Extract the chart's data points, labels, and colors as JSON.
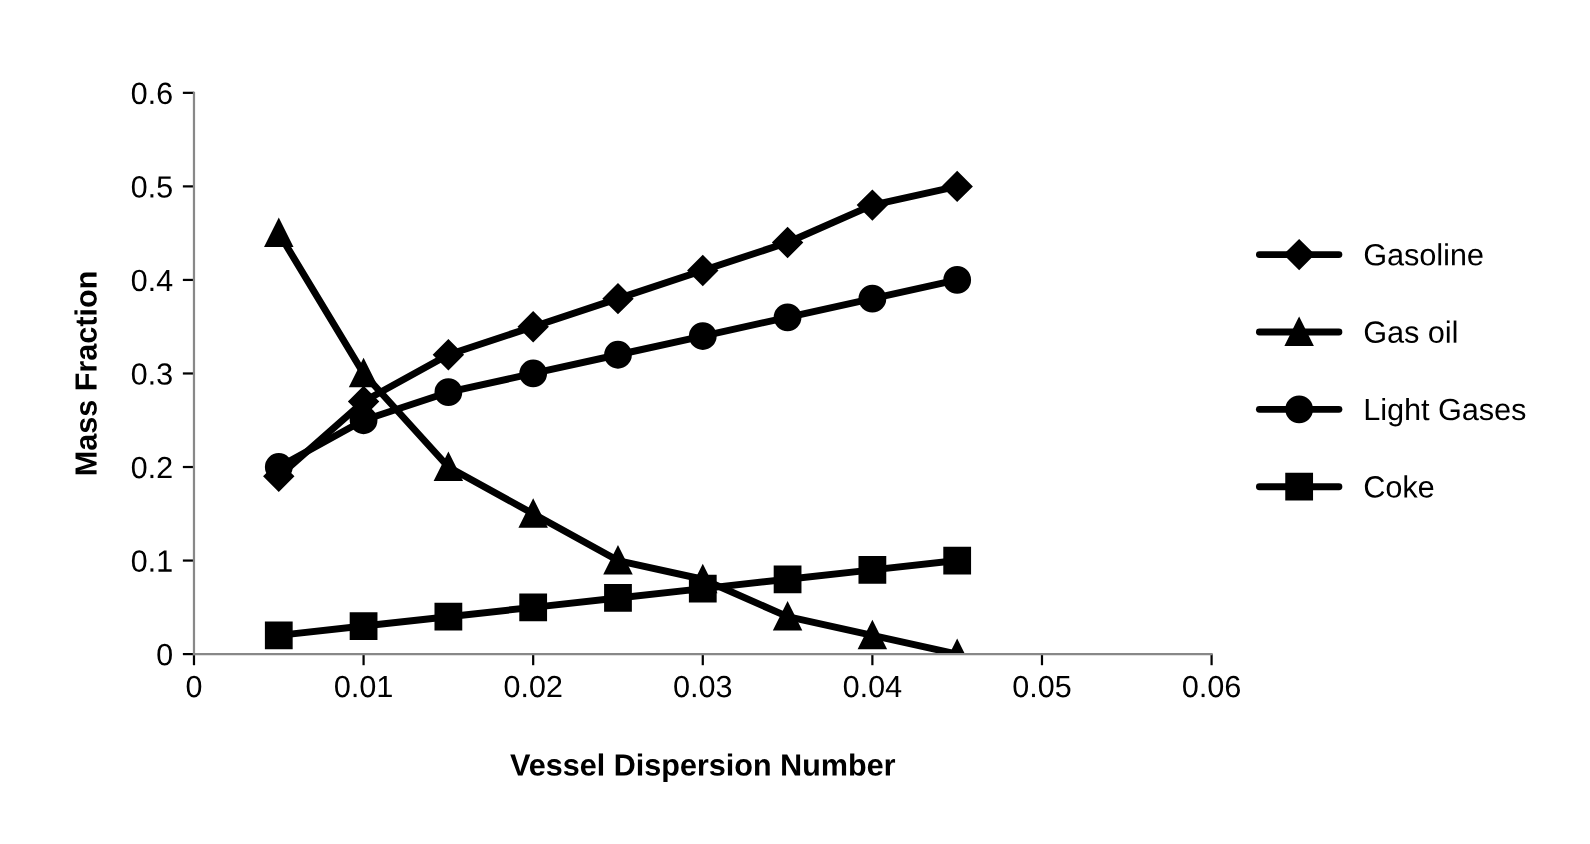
{
  "chart_data": {
    "type": "line",
    "xlabel": "Vessel Dispersion Number",
    "ylabel": "Mass Fraction",
    "x": [
      0.005,
      0.01,
      0.015,
      0.02,
      0.025,
      0.03,
      0.035,
      0.04,
      0.045
    ],
    "series": [
      {
        "name": "Gasoline",
        "color": "#000000",
        "marker": "diamond",
        "values": [
          0.19,
          0.27,
          0.32,
          0.35,
          0.38,
          0.41,
          0.44,
          0.48,
          0.5
        ]
      },
      {
        "name": "Gas oil",
        "color": "#000000",
        "marker": "triangle",
        "values": [
          0.45,
          0.3,
          0.2,
          0.15,
          0.1,
          0.08,
          0.04,
          0.02,
          0.0
        ]
      },
      {
        "name": "Light Gases",
        "color": "#000000",
        "marker": "circle",
        "values": [
          0.2,
          0.25,
          0.28,
          0.3,
          0.32,
          0.34,
          0.36,
          0.38,
          0.4
        ]
      },
      {
        "name": "Coke",
        "color": "#000000",
        "marker": "square",
        "values": [
          0.02,
          0.03,
          0.04,
          0.05,
          0.06,
          0.07,
          0.08,
          0.09,
          0.1
        ]
      }
    ],
    "xlim": [
      0,
      0.06
    ],
    "xticks": [
      0,
      0.01,
      0.02,
      0.03,
      0.04,
      0.05,
      0.06
    ],
    "ylim": [
      0,
      0.6
    ],
    "yticks": [
      0,
      0.1,
      0.2,
      0.3,
      0.4,
      0.5,
      0.6
    ],
    "grid": false,
    "legend": "right",
    "line_style": "solid"
  }
}
